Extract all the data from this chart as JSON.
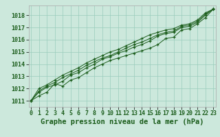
{
  "title": "Graphe pression niveau de la mer (hPa)",
  "xlabel_hours": [
    0,
    1,
    2,
    3,
    4,
    5,
    6,
    7,
    8,
    9,
    10,
    11,
    12,
    13,
    14,
    15,
    16,
    17,
    18,
    19,
    20,
    21,
    22,
    23
  ],
  "ylim": [
    1010.5,
    1018.8
  ],
  "yticks": [
    1011,
    1012,
    1013,
    1014,
    1015,
    1016,
    1017,
    1018
  ],
  "bg_color": "#cce8dc",
  "grid_color": "#99ccbb",
  "line_color": "#1a5c1a",
  "series": [
    [
      1011.0,
      1011.4,
      1011.7,
      1012.4,
      1012.2,
      1012.7,
      1012.9,
      1013.3,
      1013.7,
      1014.0,
      1014.3,
      1014.5,
      1014.7,
      1014.9,
      1015.1,
      1015.3,
      1015.6,
      1016.1,
      1016.2,
      1016.8,
      1016.9,
      1017.3,
      1017.8,
      1018.5
    ],
    [
      1011.0,
      1011.7,
      1012.1,
      1012.3,
      1012.6,
      1013.1,
      1013.3,
      1013.7,
      1014.0,
      1014.4,
      1014.6,
      1014.9,
      1015.1,
      1015.4,
      1015.6,
      1015.9,
      1016.3,
      1016.5,
      1016.6,
      1017.0,
      1017.1,
      1017.4,
      1018.0,
      1018.5
    ],
    [
      1011.0,
      1011.8,
      1012.2,
      1012.5,
      1012.9,
      1013.2,
      1013.5,
      1013.9,
      1014.2,
      1014.5,
      1014.7,
      1015.0,
      1015.3,
      1015.6,
      1015.8,
      1016.1,
      1016.4,
      1016.6,
      1016.7,
      1017.1,
      1017.2,
      1017.5,
      1018.1,
      1018.5
    ],
    [
      1011.0,
      1012.0,
      1012.3,
      1012.7,
      1013.1,
      1013.4,
      1013.7,
      1014.1,
      1014.4,
      1014.7,
      1015.0,
      1015.2,
      1015.5,
      1015.8,
      1016.1,
      1016.4,
      1016.6,
      1016.8,
      1016.9,
      1017.2,
      1017.3,
      1017.6,
      1018.2,
      1018.5
    ]
  ],
  "title_fontsize": 7.5,
  "tick_fontsize": 6,
  "label_color": "#1a5c1a",
  "figsize": [
    3.2,
    2.0
  ],
  "dpi": 100
}
